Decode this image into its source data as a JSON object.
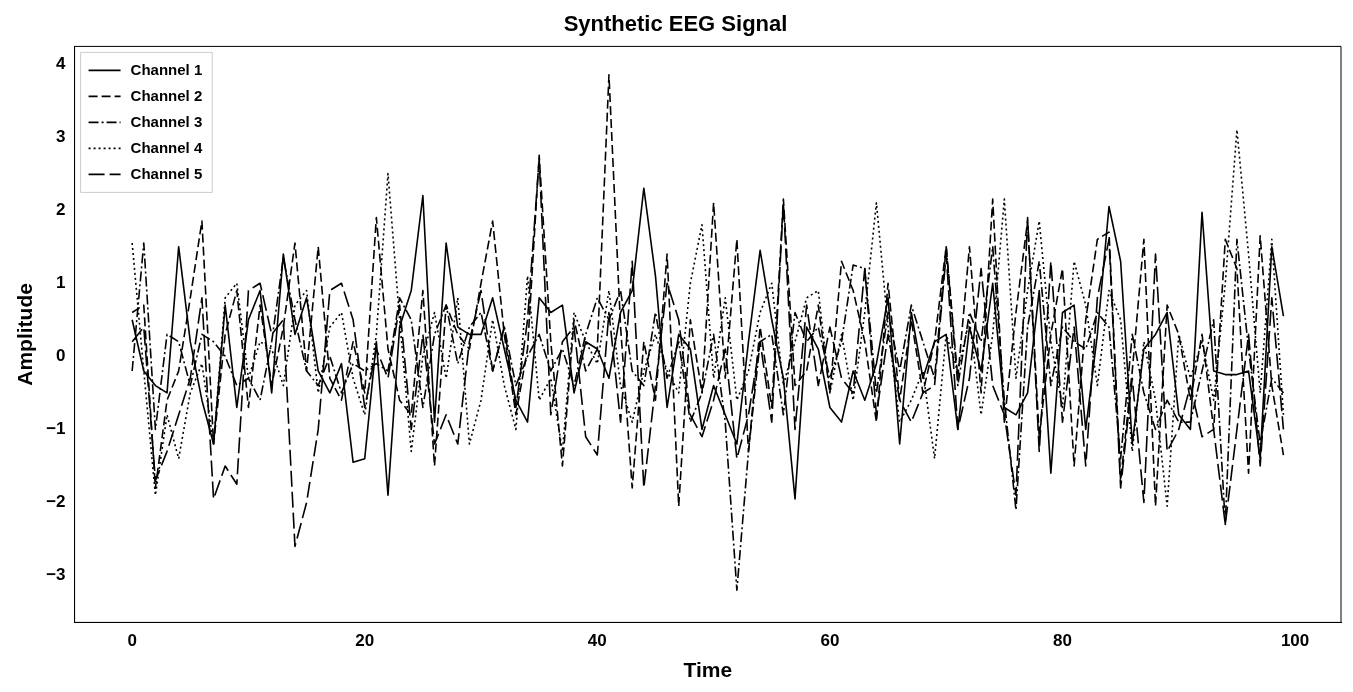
{
  "chart_data": {
    "type": "line",
    "title": "Synthetic EEG Signal",
    "xlabel": "Time",
    "ylabel": "Amplitude",
    "x": [
      0,
      1,
      2,
      3,
      4,
      5,
      6,
      7,
      8,
      9,
      10,
      11,
      12,
      13,
      14,
      15,
      16,
      17,
      18,
      19,
      20,
      21,
      22,
      23,
      24,
      25,
      26,
      27,
      28,
      29,
      30,
      31,
      32,
      33,
      34,
      35,
      36,
      37,
      38,
      39,
      40,
      41,
      42,
      43,
      44,
      45,
      46,
      47,
      48,
      49,
      50,
      51,
      52,
      53,
      54,
      55,
      56,
      57,
      58,
      59,
      60,
      61,
      62,
      63,
      64,
      65,
      66,
      67,
      68,
      69,
      70,
      71,
      72,
      73,
      74,
      75,
      76,
      77,
      78,
      79,
      80,
      81,
      82,
      83,
      84,
      85,
      86,
      87,
      88,
      89,
      90,
      91,
      92,
      93,
      94,
      95,
      96,
      97,
      98,
      99
    ],
    "series": [
      {
        "name": "Channel 1",
        "color": "#000000",
        "line_style": "solid",
        "values": [
          0.5,
          -0.2,
          -0.4,
          -0.5,
          1.5,
          0.2,
          -0.6,
          -1.2,
          0.7,
          -0.7,
          0.5,
          0.9,
          -0.5,
          1.4,
          0.3,
          0.8,
          -0.2,
          -0.5,
          -0.1,
          -1.45,
          -1.4,
          0.2,
          -1.9,
          0.4,
          0.9,
          2.2,
          -0.9,
          1.55,
          0.4,
          0.3,
          0.3,
          0.8,
          0.1,
          -0.6,
          -0.9,
          0.8,
          0.6,
          0.7,
          -0.5,
          0.2,
          0.1,
          -0.3,
          0.6,
          0.9,
          2.3,
          1.1,
          -0.7,
          0.3,
          0.1,
          -1.0,
          -0.4,
          -0.8,
          -1.2,
          0.2,
          1.45,
          0.5,
          -0.3,
          -1.95,
          0.4,
          0.1,
          -0.7,
          -0.9,
          -0.2,
          -0.6,
          -0.1,
          0.8,
          -1.2,
          0.6,
          -0.3,
          0.2,
          0.3,
          -1.0,
          0.4,
          -0.2,
          1.0,
          -0.7,
          -0.8,
          -0.5,
          0.9,
          -1.6,
          0.6,
          0.7,
          -1.0,
          0.3,
          2.05,
          1.3,
          -1.2,
          0.1,
          0.3,
          0.6,
          -0.8,
          -1.0,
          1.97,
          -0.2,
          -0.25,
          -0.25,
          -0.2,
          -1.4,
          1.5,
          0.55
        ]
      },
      {
        "name": "Channel 2",
        "color": "#000000",
        "line_style": "dashed",
        "values": [
          0.6,
          0.7,
          -1.8,
          -0.6,
          -0.2,
          0.8,
          1.85,
          -1.2,
          0.3,
          0.9,
          -0.7,
          0.7,
          -0.4,
          0.4,
          1.55,
          -0.2,
          1.5,
          -0.3,
          -0.6,
          0.2,
          -0.5,
          1.9,
          0.1,
          -0.6,
          -0.8,
          0.9,
          -1.5,
          0.7,
          0.3,
          0.1,
          1.0,
          1.85,
          0.3,
          -0.8,
          0.1,
          2.75,
          0.2,
          -1.5,
          0.5,
          -0.2,
          0.1,
          3.85,
          0.4,
          -1.8,
          0.2,
          -0.6,
          1.4,
          -2.05,
          0.5,
          -0.5,
          2.1,
          -0.3,
          1.6,
          -1.3,
          0.4,
          -0.7,
          2.15,
          -0.4,
          -0.2,
          0.7,
          -0.5,
          1.3,
          0.9,
          0.2,
          -0.9,
          1.0,
          -0.6,
          0.5,
          -0.5,
          0.2,
          1.5,
          -0.3,
          1.5,
          -0.5,
          2.15,
          -0.9,
          0.6,
          1.85,
          -1.1,
          0.3,
          1.2,
          -1.5,
          0.5,
          1.6,
          1.7,
          -1.7,
          -0.2,
          1.6,
          -2.05,
          0.7,
          0.3,
          -0.6,
          0.3,
          -1.0,
          1.6,
          1.2,
          -1.6,
          1.65,
          -0.4,
          -1.35
        ]
      },
      {
        "name": "Channel 3",
        "color": "#000000",
        "line_style": "dashdot",
        "values": [
          -0.2,
          1.55,
          -1.0,
          0.3,
          0.2,
          -0.4,
          0.3,
          0.2,
          0.0,
          -0.4,
          -0.3,
          -0.6,
          0.2,
          1.35,
          0.5,
          -0.2,
          -0.4,
          0.0,
          -0.5,
          -0.1,
          -0.2,
          -0.1,
          -0.2,
          0.8,
          0.5,
          -0.7,
          0.3,
          0.7,
          -0.1,
          0.4,
          0.6,
          -0.2,
          0.4,
          -0.4,
          0.0,
          0.3,
          -0.2,
          0.1,
          -0.4,
          0.3,
          0.8,
          0.5,
          0.9,
          -0.2,
          -0.4,
          0.6,
          -0.3,
          0.2,
          -0.9,
          -0.5,
          0.3,
          -0.9,
          -3.2,
          -1.3,
          0.2,
          0.3,
          -0.8,
          0.6,
          0.2,
          0.4,
          -0.3,
          0.2,
          1.25,
          1.2,
          -0.5,
          0.6,
          -0.2,
          0.7,
          0.2,
          -0.3,
          1.5,
          -0.4,
          0.6,
          0.2,
          1.5,
          -0.6,
          -2.1,
          0.4,
          1.3,
          -0.4,
          0.4,
          0.2,
          0.1,
          0.6,
          0.4,
          -1.4,
          0.3,
          -0.5,
          -1.0,
          -0.6,
          -0.9,
          -0.9,
          -0.2,
          0.5,
          -2.3,
          1.6,
          0.1,
          -1.2,
          -0.3,
          -0.5
        ]
      },
      {
        "name": "Channel 4",
        "color": "#000000",
        "line_style": "dotted",
        "values": [
          1.55,
          -0.2,
          -1.9,
          -0.8,
          -1.4,
          -0.5,
          -0.1,
          -1.2,
          0.8,
          1.0,
          -0.3,
          0.2,
          0.1,
          -0.4,
          0.7,
          0.9,
          -0.5,
          0.4,
          0.6,
          -0.3,
          -0.8,
          0.3,
          2.5,
          0.5,
          -1.3,
          0.0,
          0.6,
          -0.3,
          0.8,
          -1.2,
          -0.6,
          0.5,
          -0.4,
          -1.0,
          1.1,
          -0.6,
          -0.3,
          -1.3,
          0.6,
          0.2,
          -0.1,
          0.9,
          -0.4,
          -0.9,
          -0.2,
          0.3,
          -0.2,
          -0.5,
          1.0,
          1.8,
          -0.3,
          0.8,
          -0.6,
          -0.2,
          0.6,
          1.0,
          -0.4,
          0.2,
          0.8,
          0.9,
          -0.5,
          0.3,
          -0.6,
          0.6,
          2.1,
          0.4,
          -0.9,
          -0.6,
          -0.2,
          -1.4,
          0.3,
          -0.2,
          0.5,
          -0.8,
          0.3,
          2.15,
          -0.3,
          0.9,
          1.85,
          0.2,
          -0.7,
          1.3,
          0.7,
          -0.4,
          0.9,
          0.5,
          -1.3,
          0.2,
          -0.6,
          -2.05,
          0.3,
          -0.3,
          0.2,
          -0.6,
          1.0,
          3.1,
          1.4,
          -0.5,
          1.6,
          -0.8
        ]
      },
      {
        "name": "Channel 5",
        "color": "#000000",
        "line_style": "longdash",
        "values": [
          0.2,
          0.4,
          -1.7,
          -1.3,
          -0.8,
          -0.3,
          0.8,
          -1.95,
          -1.5,
          -1.75,
          0.9,
          1.0,
          0.3,
          0.5,
          -2.6,
          -2.0,
          -1.0,
          0.9,
          1.0,
          0.5,
          -0.7,
          0.1,
          -0.3,
          0.7,
          -1.0,
          0.3,
          -1.2,
          -0.8,
          -1.2,
          0.2,
          0.9,
          -0.2,
          0.4,
          -0.7,
          0.5,
          2.7,
          -0.8,
          0.2,
          0.4,
          -1.1,
          -1.35,
          0.6,
          -0.9,
          1.3,
          -1.8,
          -0.4,
          1.0,
          0.5,
          -0.8,
          -1.1,
          -0.6,
          0.1,
          -1.4,
          -0.8,
          0.2,
          -0.9,
          2.1,
          -1.0,
          0.7,
          -0.4,
          0.4,
          -0.3,
          -0.5,
          1.2,
          -0.8,
          0.3,
          -0.6,
          -0.9,
          -0.5,
          -0.4,
          1.4,
          -1.0,
          -0.3,
          1.2,
          -0.4,
          -0.8,
          -1.9,
          1.9,
          -1.3,
          1.3,
          -0.9,
          0.4,
          -1.5,
          0.8,
          1.6,
          -1.8,
          -0.3,
          -2.0,
          1.4,
          -1.3,
          -1.0,
          -0.4,
          -1.1,
          -1.0,
          -2.3,
          -1.0,
          0.3,
          -1.5,
          0.8,
          -1.0
        ]
      }
    ],
    "xlim": [
      -4.95,
      103.95
    ],
    "xticks": [
      0,
      20,
      40,
      60,
      80,
      100
    ],
    "ylim": [
      -3.64,
      4.24
    ],
    "yticks": [
      -3,
      -2,
      -1,
      0,
      1,
      2,
      3,
      4
    ],
    "legend": "top left"
  }
}
